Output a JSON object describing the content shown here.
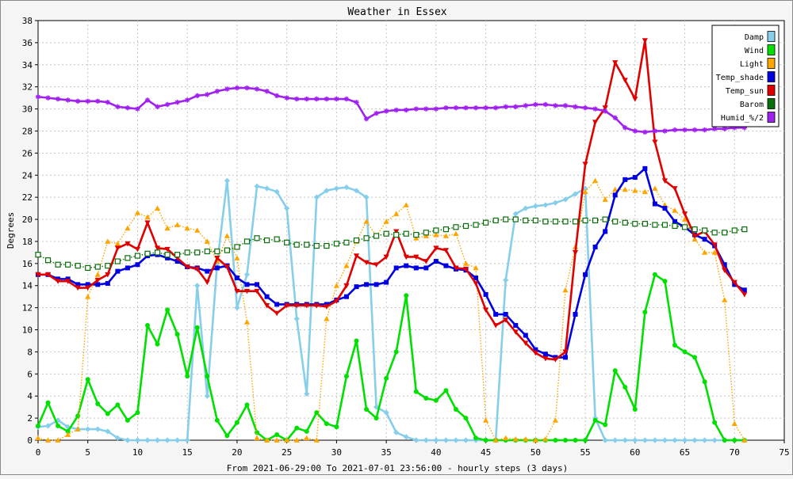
{
  "chart_data": {
    "type": "line",
    "title": "Weather in Essex",
    "ylabel": "Degrees",
    "xlabel": "From 2021-06-29:00 To 2021-07-01 23:56:00 - hourly steps (3 days)",
    "xlim": [
      0,
      75
    ],
    "ylim": [
      0,
      38
    ],
    "x_ticks": [
      0,
      5,
      10,
      15,
      20,
      25,
      30,
      35,
      40,
      45,
      50,
      55,
      60,
      65,
      70,
      75
    ],
    "y_ticks": [
      0,
      2,
      4,
      6,
      8,
      10,
      12,
      14,
      16,
      18,
      20,
      22,
      24,
      26,
      28,
      30,
      32,
      34,
      36,
      38
    ],
    "grid": true,
    "legend_position": "top-right",
    "series": [
      {
        "name": "Damp",
        "color": "#87ceeb",
        "marker": "diamond",
        "dash": "solid",
        "values": [
          1.2,
          1.3,
          1.8,
          1.2,
          1.0,
          1.0,
          1.0,
          0.8,
          0.2,
          0,
          0,
          0,
          0,
          0,
          0,
          0,
          14,
          4,
          16,
          23.5,
          12,
          15,
          23,
          22.8,
          22.5,
          21,
          11,
          4.2,
          22,
          22.6,
          22.8,
          22.9,
          22.6,
          22,
          3,
          2.5,
          0.7,
          0.3,
          0,
          0,
          0,
          0,
          0,
          0,
          0,
          0,
          0,
          14.5,
          20.5,
          21,
          21.2,
          21.3,
          21.5,
          21.8,
          22.3,
          22.8,
          2,
          0,
          0,
          0,
          0,
          0,
          0,
          0,
          0,
          0,
          0,
          0,
          0,
          0,
          0,
          0
        ]
      },
      {
        "name": "Wind",
        "color": "#00e000",
        "marker": "circle",
        "dash": "solid",
        "values": [
          1.3,
          3.4,
          1.3,
          0.8,
          2.2,
          5.5,
          3.3,
          2.4,
          3.2,
          1.8,
          2.5,
          10.4,
          8.7,
          11.8,
          9.6,
          5.8,
          10.2,
          5.8,
          1.8,
          0.4,
          1.6,
          3.2,
          0.7,
          0,
          0.5,
          0,
          1.1,
          0.8,
          2.5,
          1.5,
          1.2,
          5.8,
          9.0,
          2.8,
          2.0,
          5.6,
          8.0,
          13.1,
          4.4,
          3.8,
          3.6,
          4.5,
          2.8,
          2.0,
          0.2,
          0,
          0,
          0,
          0,
          0,
          0,
          0,
          0,
          0,
          0,
          0,
          1.8,
          1.4,
          6.3,
          4.8,
          2.8,
          11.6,
          15.0,
          14.4,
          8.6,
          8.0,
          7.5,
          5.3,
          1.6,
          0,
          0,
          0
        ]
      },
      {
        "name": "Light",
        "color": "#ffa500",
        "marker": "triangle-up",
        "dash": "dotted",
        "values": [
          0.2,
          0,
          0,
          0.5,
          1.0,
          13,
          15,
          18,
          17.8,
          19.2,
          20.6,
          20.2,
          21.0,
          19.2,
          19.5,
          19.2,
          19.0,
          18.0,
          16.2,
          18.5,
          16.5,
          10.7,
          0.2,
          0,
          0,
          0,
          0,
          0.2,
          0,
          11,
          14,
          15.8,
          18,
          19.8,
          18.5,
          19.8,
          20.5,
          21.3,
          18.3,
          18.5,
          18.6,
          18.5,
          18.7,
          16.0,
          15.6,
          1.8,
          0,
          0.2,
          0.1,
          0.1,
          0,
          0.1,
          1.8,
          13.6,
          17.5,
          22.5,
          23.5,
          21.8,
          22.7,
          22.7,
          22.6,
          22.5,
          22.8,
          21.3,
          20.8,
          20.0,
          18.2,
          17.0,
          17.0,
          12.7,
          1.5,
          0
        ]
      },
      {
        "name": "Temp_shade",
        "color": "#0000e0",
        "marker": "square",
        "dash": "solid",
        "values": [
          15.0,
          15.0,
          14.6,
          14.6,
          14.1,
          14.1,
          14.1,
          14.2,
          15.3,
          15.6,
          15.9,
          16.7,
          16.8,
          16.5,
          16.2,
          15.7,
          15.6,
          15.3,
          15.6,
          15.8,
          14.7,
          14.1,
          14.1,
          13.0,
          12.3,
          12.3,
          12.3,
          12.3,
          12.3,
          12.3,
          12.7,
          13.0,
          13.9,
          14.1,
          14.1,
          14.3,
          15.6,
          15.8,
          15.6,
          15.6,
          16.2,
          15.8,
          15.5,
          15.4,
          14.7,
          13.2,
          11.4,
          11.4,
          10.4,
          9.5,
          8.2,
          7.8,
          7.5,
          7.5,
          11.4,
          15.0,
          17.5,
          18.9,
          22.2,
          23.6,
          23.8,
          24.6,
          21.4,
          21.0,
          19.8,
          19.3,
          18.6,
          18.2,
          17.6,
          15.9,
          14.1,
          13.6
        ]
      },
      {
        "name": "Temp_sun",
        "color": "#e00000",
        "marker": "triangle-down",
        "dash": "solid",
        "values": [
          15.0,
          15.0,
          14.4,
          14.4,
          13.8,
          13.8,
          14.5,
          15.0,
          17.4,
          17.8,
          17.3,
          19.7,
          17.4,
          17.3,
          16.5,
          15.7,
          15.5,
          14.3,
          16.5,
          15.7,
          13.5,
          13.5,
          13.5,
          12.2,
          11.5,
          12.2,
          12.2,
          12.2,
          12.2,
          12.1,
          12.6,
          14.0,
          16.7,
          16.1,
          15.9,
          16.6,
          18.9,
          16.6,
          16.6,
          16.2,
          17.4,
          17.2,
          15.6,
          15.5,
          14.2,
          11.8,
          10.4,
          10.9,
          9.8,
          8.8,
          7.9,
          7.4,
          7.3,
          8.0,
          17.0,
          25.0,
          28.8,
          30.1,
          34.2,
          32.6,
          30.9,
          36.2,
          27.0,
          23.5,
          22.8,
          20.5,
          18.5,
          18.9,
          17.7,
          15.4,
          14.3,
          13.2
        ]
      },
      {
        "name": "Barom",
        "color": "#0a6e0a",
        "marker": "open-square",
        "dash": "dotted",
        "values": [
          16.8,
          16.3,
          15.9,
          15.9,
          15.8,
          15.6,
          15.7,
          15.8,
          16.2,
          16.5,
          16.7,
          16.9,
          17.0,
          16.8,
          16.8,
          17.0,
          17.0,
          17.1,
          17.1,
          17.2,
          17.5,
          18.0,
          18.3,
          18.1,
          18.2,
          17.9,
          17.7,
          17.7,
          17.6,
          17.6,
          17.8,
          17.9,
          18.1,
          18.3,
          18.5,
          18.7,
          18.6,
          18.7,
          18.6,
          18.8,
          19.0,
          19.1,
          19.3,
          19.4,
          19.5,
          19.7,
          19.9,
          20.0,
          20.0,
          19.9,
          19.9,
          19.8,
          19.8,
          19.8,
          19.8,
          19.9,
          19.9,
          20.0,
          19.8,
          19.7,
          19.6,
          19.6,
          19.5,
          19.5,
          19.4,
          19.3,
          19.1,
          19.0,
          18.8,
          18.8,
          19.0,
          19.1
        ]
      },
      {
        "name": "Humid_%/2",
        "color": "#a020f0",
        "marker": "star",
        "dash": "solid",
        "values": [
          31.1,
          31.0,
          30.9,
          30.8,
          30.7,
          30.7,
          30.7,
          30.6,
          30.2,
          30.1,
          30.0,
          30.8,
          30.2,
          30.4,
          30.6,
          30.8,
          31.2,
          31.3,
          31.6,
          31.8,
          31.9,
          31.9,
          31.8,
          31.6,
          31.2,
          31.0,
          30.9,
          30.9,
          30.9,
          30.9,
          30.9,
          30.9,
          30.6,
          29.1,
          29.6,
          29.8,
          29.9,
          29.9,
          30.0,
          30.0,
          30.0,
          30.1,
          30.1,
          30.1,
          30.1,
          30.1,
          30.1,
          30.2,
          30.2,
          30.3,
          30.4,
          30.4,
          30.3,
          30.3,
          30.2,
          30.1,
          30.0,
          29.8,
          29.2,
          28.3,
          28.0,
          27.9,
          28.0,
          28.0,
          28.1,
          28.1,
          28.1,
          28.1,
          28.2,
          28.2,
          28.3,
          28.3
        ]
      }
    ]
  }
}
